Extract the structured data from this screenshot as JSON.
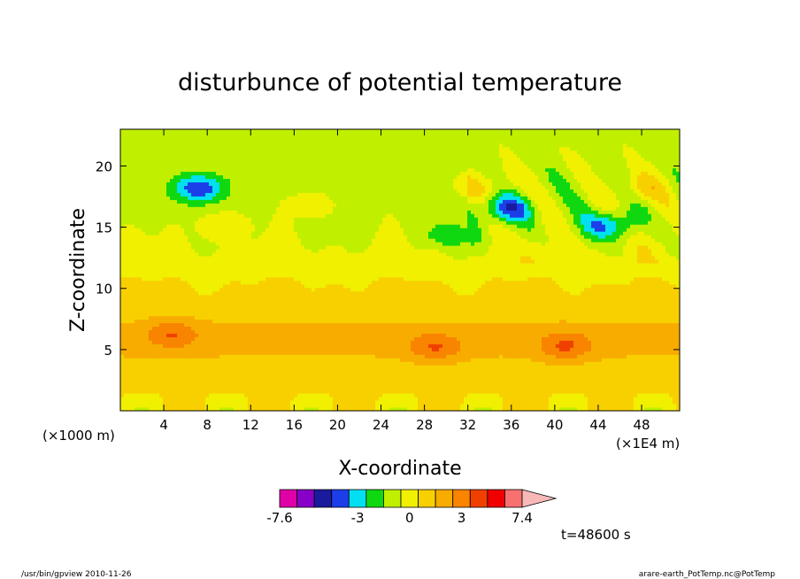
{
  "chart_data": {
    "type": "heatmap",
    "title": "disturbunce of potential temperature",
    "xlabel": "X-coordinate",
    "ylabel": "Z-coordinate",
    "x_unit": "(×1000 m)",
    "x_multiplier": "(×1E4 m)",
    "xlim": [
      0,
      51.5
    ],
    "ylim": [
      0,
      23
    ],
    "xticks": [
      4,
      8,
      12,
      16,
      20,
      24,
      28,
      32,
      36,
      40,
      44,
      48
    ],
    "yticks": [
      5,
      10,
      15,
      20
    ],
    "grid": false,
    "colorbar": {
      "levels": [
        -7.6,
        -6.5,
        -5.5,
        -4.5,
        -3.5,
        -2.5,
        -1.5,
        -0.5,
        0.5,
        1.5,
        2.5,
        3.5,
        4.5,
        5.5,
        7.4
      ],
      "colors": [
        "#e000a8",
        "#8800c8",
        "#1a1a9e",
        "#1c3ee8",
        "#00e0f0",
        "#10d810",
        "#c0f000",
        "#f0f000",
        "#f8d000",
        "#f8ac00",
        "#f88400",
        "#f04000",
        "#f00000",
        "#f87070",
        "#f8b8b8"
      ],
      "tick_labels": [
        {
          "value": -7.6,
          "label": "-7.6"
        },
        {
          "value": -3,
          "label": "-3"
        },
        {
          "value": 0,
          "label": "0"
        },
        {
          "value": 3,
          "label": "3"
        },
        {
          "value": 7.4,
          "label": "7.4"
        }
      ]
    },
    "fields": {
      "background_value": 0.5,
      "features": [
        {
          "kind": "warm_band",
          "z_center": 5.8,
          "z_thickness": 2.6,
          "value": 1.8
        },
        {
          "kind": "warm_patch",
          "x": 4.8,
          "z": 6.3,
          "value": 2.6
        },
        {
          "kind": "warm_patch",
          "x": 29,
          "z": 5.2,
          "value": 2.7
        },
        {
          "kind": "warm_patch",
          "x": 41,
          "z": 5.3,
          "value": 2.8
        },
        {
          "kind": "green_top",
          "z_from": 13,
          "value": -0.8
        },
        {
          "kind": "cold_patch",
          "x": 7.2,
          "z": 18.2,
          "value": -4.2
        },
        {
          "kind": "cold_patch",
          "x": 35.5,
          "z": 16.5,
          "value": -3.8
        },
        {
          "kind": "cold_patch",
          "x": 45,
          "z": 15.2,
          "value": -3.4
        },
        {
          "kind": "cold_patch",
          "x": 30,
          "z": 14.3,
          "value": -2.0
        },
        {
          "kind": "warm_patch",
          "x": 33.5,
          "z": 18.5,
          "value": 2.1
        },
        {
          "kind": "warm_patch",
          "x": 48,
          "z": 18.2,
          "value": 2.3
        },
        {
          "kind": "warm_patch",
          "x": 9.5,
          "z": 15.2,
          "value": 1.6
        },
        {
          "kind": "warm_patch",
          "x": 17.5,
          "z": 16.8,
          "value": 1.4
        }
      ]
    }
  },
  "time_label": "t=48600 s",
  "footer_left": "/usr/bin/gpview   2010-11-26",
  "footer_right": "arare-earth_PotTemp.nc@PotTemp"
}
